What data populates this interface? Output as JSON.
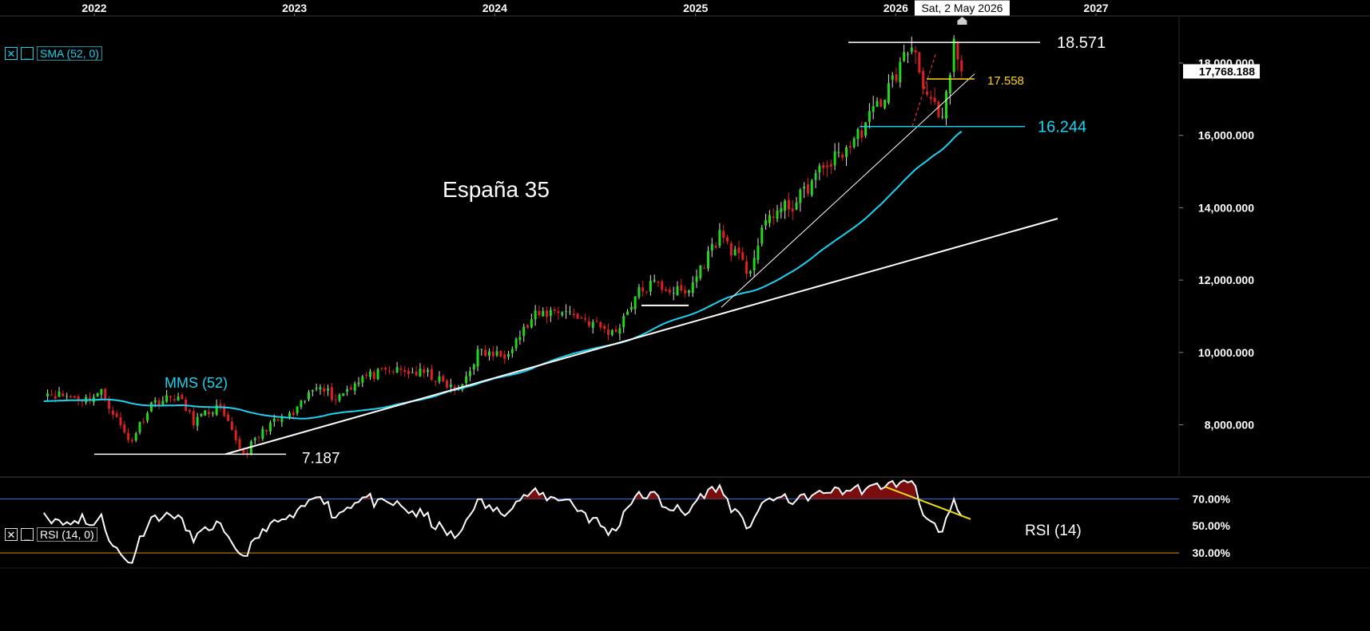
{
  "chart_data": {
    "type": "candlestick",
    "title": "España 35",
    "x_axis": {
      "ticks": [
        "2022",
        "2023",
        "2024",
        "2025",
        "2026",
        "2027"
      ],
      "crosshair_label": "Sat, 2 May 2026"
    },
    "y_axis": {
      "ticks": [
        "18,000.000",
        "16,000.000",
        "14,000.000",
        "12,000.000",
        "10,000.000",
        "8,000.000"
      ],
      "current_price_label": "17,768.188",
      "ylim": [
        6600,
        19300
      ]
    },
    "series": [
      {
        "name": "MMS (52)",
        "color": "#1ad3f3"
      }
    ],
    "price_levels": [
      {
        "label": "18.571",
        "value": 18571,
        "color": "#ffffff"
      },
      {
        "label": "17.558",
        "value": 17558,
        "color": "#ffd21a"
      },
      {
        "label": "16.244",
        "value": 16244,
        "color": "#1ad3f3"
      },
      {
        "label": "7.187",
        "value": 7187,
        "color": "#ffffff"
      }
    ],
    "weekly_close_anchors": [
      [
        "2021-10-01",
        8900
      ],
      [
        "2021-12-15",
        8700
      ],
      [
        "2022-01-15",
        8900
      ],
      [
        "2022-03-07",
        7500
      ],
      [
        "2022-04-15",
        8600
      ],
      [
        "2022-06-01",
        8800
      ],
      [
        "2022-07-01",
        8100
      ],
      [
        "2022-08-15",
        8500
      ],
      [
        "2022-09-30",
        7187
      ],
      [
        "2022-11-15",
        8000
      ],
      [
        "2023-01-01",
        8300
      ],
      [
        "2023-02-15",
        9200
      ],
      [
        "2023-03-15",
        8700
      ],
      [
        "2023-05-01",
        9300
      ],
      [
        "2023-07-01",
        9500
      ],
      [
        "2023-09-01",
        9400
      ],
      [
        "2023-10-27",
        8900
      ],
      [
        "2023-12-01",
        10000
      ],
      [
        "2024-01-15",
        9900
      ],
      [
        "2024-03-15",
        11000
      ],
      [
        "2024-05-01",
        11200
      ],
      [
        "2024-06-15",
        10900
      ],
      [
        "2024-08-05",
        10500
      ],
      [
        "2024-09-15",
        11600
      ],
      [
        "2024-10-15",
        11900
      ],
      [
        "2024-12-15",
        11600
      ],
      [
        "2025-02-15",
        13300
      ],
      [
        "2025-04-07",
        12200
      ],
      [
        "2025-05-15",
        13800
      ],
      [
        "2025-07-01",
        14100
      ],
      [
        "2025-08-15",
        15000
      ],
      [
        "2025-10-15",
        15800
      ],
      [
        "2025-12-15",
        17200
      ],
      [
        "2026-02-01",
        18571
      ],
      [
        "2026-03-01",
        17000
      ],
      [
        "2026-03-27",
        16300
      ],
      [
        "2026-04-17",
        18450
      ],
      [
        "2026-05-01",
        17768
      ]
    ],
    "rsi": {
      "label": "RSI (14)",
      "period": 14,
      "ticks": [
        "70.00%",
        "50.00%",
        "30.00%"
      ],
      "ylim": [
        20,
        85
      ],
      "levels": [
        70,
        30
      ]
    },
    "indicator_controls": {
      "sma": "SMA (52, 0)",
      "rsi": "RSI (14, 0)"
    }
  }
}
